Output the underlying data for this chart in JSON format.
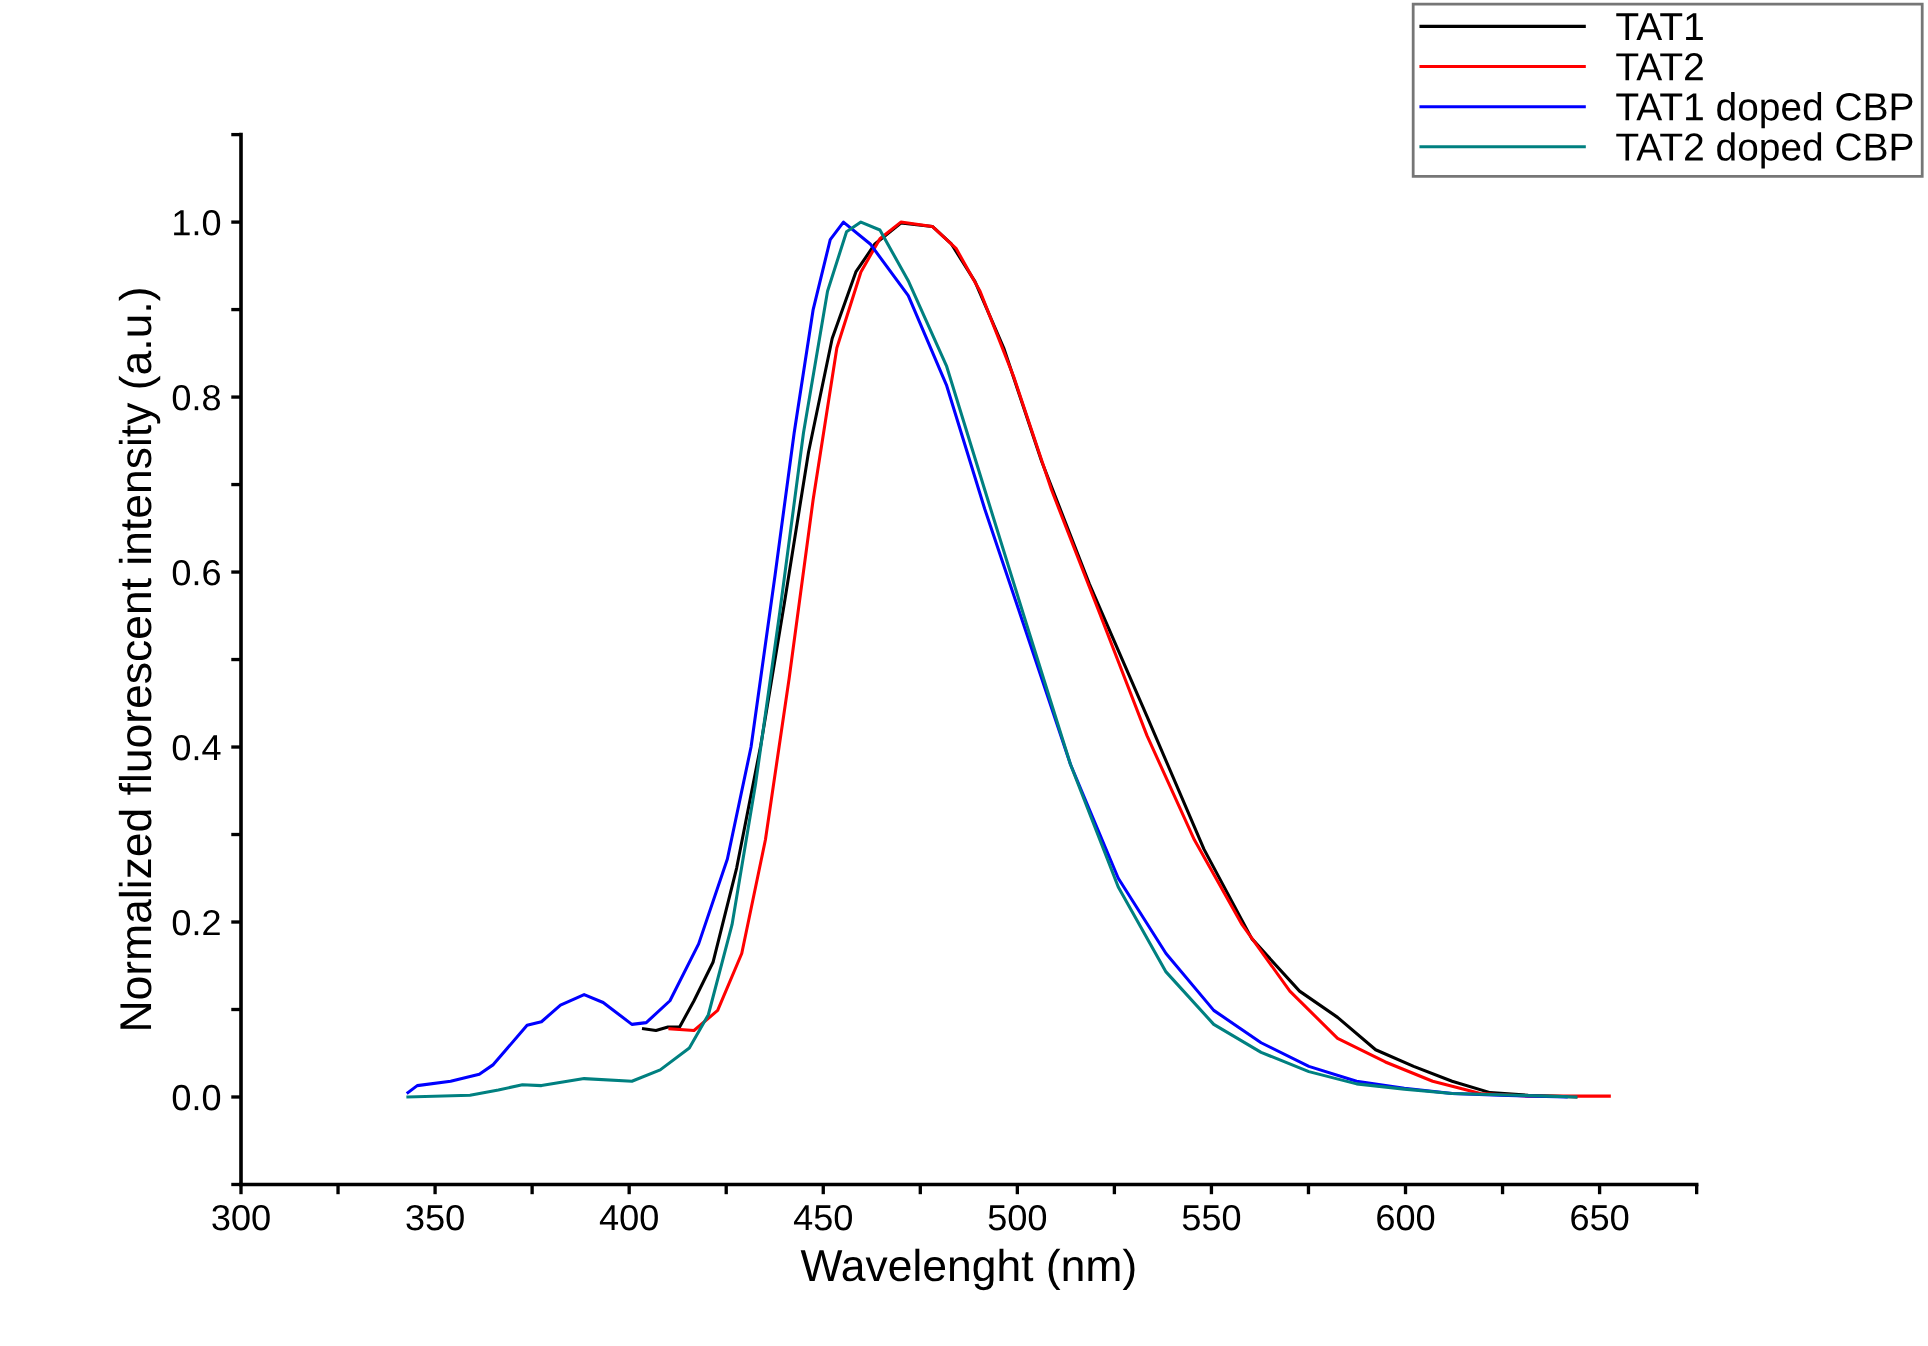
{
  "chart_data": {
    "type": "line",
    "xlabel": "Wavelenght (nm)",
    "ylabel": "Normalized fluorescent intensity (a.u.)",
    "xlim": [
      300,
      675
    ],
    "ylim": [
      -0.1,
      1.1
    ],
    "xticks": [
      300,
      350,
      400,
      450,
      500,
      550,
      600,
      650,
      {
        "value": 325,
        "label": null
      },
      {
        "value": 375,
        "label": null
      },
      {
        "value": 425,
        "label": null
      },
      {
        "value": 475,
        "label": null
      },
      {
        "value": 525,
        "label": null
      },
      {
        "value": 575,
        "label": null
      },
      {
        "value": 625,
        "label": null
      },
      {
        "value": 675,
        "label": null
      }
    ],
    "yticks": [
      {
        "value": 0,
        "label": "0.0"
      },
      {
        "value": 0.2,
        "label": "0.2"
      },
      {
        "value": 0.4,
        "label": "0.4"
      },
      {
        "value": 0.6,
        "label": "0.6"
      },
      {
        "value": 0.8,
        "label": "0.8"
      },
      {
        "value": 1.0,
        "label": "1.0"
      },
      {
        "value": -0.1,
        "label": null
      },
      {
        "value": 0.1,
        "label": null
      },
      {
        "value": 0.3,
        "label": null
      },
      {
        "value": 0.5,
        "label": null
      },
      {
        "value": 0.7,
        "label": null
      },
      {
        "value": 0.9,
        "label": null
      },
      {
        "value": 1.1,
        "label": null
      }
    ],
    "grid": false,
    "legend": "top right",
    "marker": "none",
    "line_style": "solid",
    "series": [
      {
        "name": "TAT1",
        "color": "#000000",
        "x": [
          403.7,
          406.9,
          410,
          413,
          416.7,
          421.6,
          427.7,
          433.9,
          440,
          446.2,
          452.3,
          458.4,
          463.3,
          470,
          478.1,
          483,
          489.1,
          496.5,
          506.3,
          518.6,
          533.4,
          548.1,
          560.4,
          572.7,
          582.5,
          592.3,
          602.1,
          612,
          621.8,
          631.6,
          643.9
        ],
        "values": [
          0.078,
          0.076,
          0.08,
          0.08,
          0.11,
          0.154,
          0.262,
          0.402,
          0.565,
          0.737,
          0.867,
          0.943,
          0.975,
          0.999,
          0.995,
          0.975,
          0.932,
          0.856,
          0.726,
          0.586,
          0.435,
          0.283,
          0.181,
          0.121,
          0.091,
          0.054,
          0.035,
          0.018,
          0.005,
          0.002,
          0
        ]
      },
      {
        "name": "TAT2",
        "color": "#ff0000",
        "x": [
          410.5,
          416.7,
          422.8,
          429,
          435.1,
          441.2,
          447.4,
          453.5,
          459.7,
          464.6,
          470,
          478.1,
          484.2,
          490.4,
          499,
          508.8,
          521.1,
          533.4,
          545.6,
          557.9,
          570.2,
          582.5,
          594.8,
          607,
          619.3,
          631.6,
          643.9,
          652.5
        ],
        "values": [
          0.078,
          0.076,
          0.099,
          0.164,
          0.294,
          0.478,
          0.683,
          0.856,
          0.943,
          0.981,
          1.0,
          0.995,
          0.97,
          0.921,
          0.824,
          0.694,
          0.554,
          0.413,
          0.294,
          0.197,
          0.121,
          0.067,
          0.04,
          0.018,
          0.004,
          0.001,
          0.001,
          0.001
        ]
      },
      {
        "name": "TAT1 doped CBP",
        "color": "#0000ff",
        "x": [
          343,
          345.4,
          354,
          361.4,
          365,
          373.7,
          377.4,
          382.3,
          388.4,
          393.3,
          400.7,
          404.4,
          410.5,
          417.9,
          425.3,
          431.4,
          437.6,
          442.5,
          447.4,
          451.8,
          455.2,
          462.1,
          471.9,
          481.8,
          491.6,
          501.4,
          513.7,
          526,
          538.3,
          550.6,
          562.8,
          575.1,
          587.4,
          599.7,
          612,
          624.2,
          641.4
        ],
        "values": [
          0.005,
          0.013,
          0.018,
          0.026,
          0.037,
          0.082,
          0.086,
          0.105,
          0.117,
          0.108,
          0.083,
          0.085,
          0.11,
          0.175,
          0.272,
          0.4,
          0.597,
          0.759,
          0.9,
          0.98,
          1.0,
          0.975,
          0.916,
          0.813,
          0.672,
          0.543,
          0.38,
          0.25,
          0.164,
          0.099,
          0.062,
          0.035,
          0.018,
          0.01,
          0.004,
          0.002,
          0
        ]
      },
      {
        "name": "TAT2 doped CBP",
        "color": "#008080",
        "x": [
          343,
          359,
          366.3,
          372.5,
          377.4,
          388.4,
          400.7,
          408,
          415.5,
          420.4,
          426.5,
          432.6,
          438.8,
          444.9,
          451.1,
          456,
          459.7,
          464.6,
          472,
          481.8,
          491.6,
          501.4,
          513.7,
          526,
          538.3,
          550.6,
          562.8,
          575.1,
          587.4,
          599.7,
          612,
          636.5,
          643.9
        ],
        "values": [
          0,
          0.002,
          0.008,
          0.014,
          0.013,
          0.021,
          0.018,
          0.031,
          0.056,
          0.094,
          0.197,
          0.359,
          0.554,
          0.759,
          0.921,
          0.989,
          1.0,
          0.991,
          0.932,
          0.835,
          0.694,
          0.554,
          0.38,
          0.24,
          0.143,
          0.083,
          0.051,
          0.029,
          0.015,
          0.009,
          0.004,
          0.001,
          0
        ]
      }
    ]
  }
}
